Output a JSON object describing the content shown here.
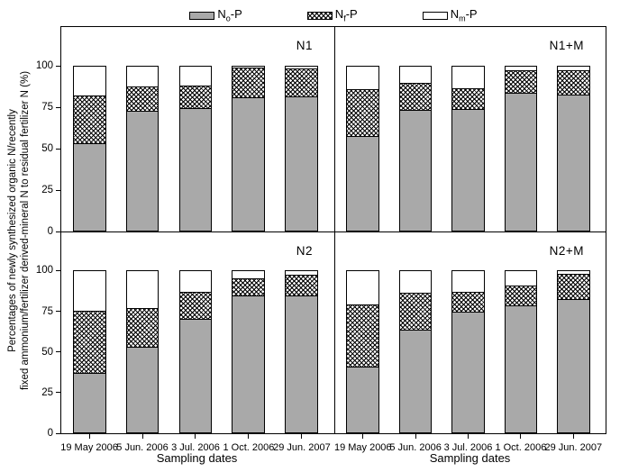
{
  "colors": {
    "background": "#ffffff",
    "bar_gray": "#a9a9a9",
    "bar_hatch_line": "#000000",
    "bar_white": "#ffffff",
    "frame": "#000000"
  },
  "legend": {
    "items": [
      {
        "pre": "N",
        "sub": "o",
        "post": "-P",
        "swatch": "gray"
      },
      {
        "pre": "N",
        "sub": "f",
        "post": "-P",
        "swatch": "hatch"
      },
      {
        "pre": "N",
        "sub": "m",
        "post": "-P",
        "swatch": "white"
      }
    ]
  },
  "y_axis": {
    "label_line1": "Percentages of newly synthesized organic N/recently",
    "label_line2": "fixed ammonium/fertilizer derived-mineral N to residual fertilizer N (%)",
    "ticks": [
      0,
      25,
      50,
      75,
      100
    ],
    "display_max": 123.5
  },
  "x_axis": {
    "title": "Sampling dates",
    "categories": [
      "19 May 2006",
      "5 Jun. 2006",
      "3 Jul. 2006",
      "1 Oct. 2006",
      "29 Jun. 2007"
    ]
  },
  "chart_data": {
    "type": "bar",
    "stacked": true,
    "grid": false,
    "legend_position": "top",
    "categories": [
      "19 May 2006",
      "5 Jun. 2006",
      "3 Jul. 2006",
      "1 Oct. 2006",
      "29 Jun. 2007"
    ],
    "ylabel": "Percentages of newly synthesized organic N/recently fixed ammonium/fertilizer derived-mineral N to residual fertilizer N (%)",
    "xlabel": "Sampling dates",
    "ylim": [
      0,
      123.5
    ],
    "yticks": [
      0,
      25,
      50,
      75,
      100
    ],
    "panels": [
      {
        "label": "N1",
        "series": [
          {
            "name": "No-P",
            "values": [
              53.5,
              73,
              75,
              81.5,
              82
            ]
          },
          {
            "name": "Nf-P",
            "values": [
              29,
              15,
              13.5,
              18,
              17
            ]
          },
          {
            "name": "Nm-P",
            "values": [
              17.5,
              12,
              11.5,
              0.5,
              1
            ]
          }
        ]
      },
      {
        "label": "N1+M",
        "series": [
          {
            "name": "No-P",
            "values": [
              58,
              73.5,
              74.5,
              84,
              83
            ]
          },
          {
            "name": "Nf-P",
            "values": [
              28.5,
              17,
              12.5,
              14,
              15
            ]
          },
          {
            "name": "Nm-P",
            "values": [
              13.5,
              9.5,
              13,
              2,
              2
            ]
          }
        ]
      },
      {
        "label": "N2",
        "series": [
          {
            "name": "No-P",
            "values": [
              37,
              53,
              70.5,
              85,
              85
            ]
          },
          {
            "name": "Nf-P",
            "values": [
              38.5,
              24.5,
              17,
              11,
              13
            ]
          },
          {
            "name": "Nm-P",
            "values": [
              24.5,
              22.5,
              12.5,
              4,
              2
            ]
          }
        ]
      },
      {
        "label": "N2+M",
        "series": [
          {
            "name": "No-P",
            "values": [
              41,
              64,
              75,
              79,
              83
            ]
          },
          {
            "name": "Nf-P",
            "values": [
              38.5,
              23,
              12.5,
              12.5,
              15.5
            ]
          },
          {
            "name": "Nm-P",
            "values": [
              20.5,
              13,
              12.5,
              8.5,
              1.5
            ]
          }
        ]
      }
    ]
  }
}
